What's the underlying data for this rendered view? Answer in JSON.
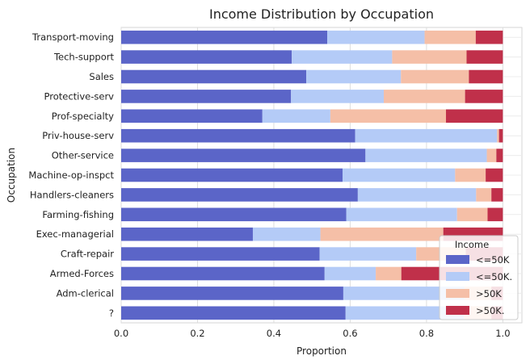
{
  "chart_data": {
    "type": "bar",
    "orientation": "horizontal",
    "stacked": true,
    "title": "Income Distribution by Occupation",
    "xlabel": "Proportion",
    "ylabel": "Occupation",
    "xlim": [
      0,
      1.05
    ],
    "xticks": [
      "0.0",
      "0.2",
      "0.4",
      "0.6",
      "0.8",
      "1.0"
    ],
    "grid": true,
    "categories": [
      "Transport-moving",
      "Tech-support",
      "Sales",
      "Protective-serv",
      "Prof-specialty",
      "Priv-house-serv",
      "Other-service",
      "Machine-op-inspct",
      "Handlers-cleaners",
      "Farming-fishing",
      "Exec-managerial",
      "Craft-repair",
      "Armed-Forces",
      "Adm-clerical",
      "?"
    ],
    "series": [
      {
        "name": "<=50K",
        "color": "#5b65c8",
        "values": [
          0.54,
          0.447,
          0.485,
          0.445,
          0.37,
          0.613,
          0.64,
          0.58,
          0.62,
          0.59,
          0.345,
          0.52,
          0.533,
          0.582,
          0.588
        ]
      },
      {
        "name": "<=50K.",
        "color": "#b4cbf7",
        "values": [
          0.255,
          0.263,
          0.248,
          0.243,
          0.178,
          0.372,
          0.318,
          0.295,
          0.31,
          0.29,
          0.177,
          0.253,
          0.134,
          0.318,
          0.31
        ]
      },
      {
        "name": ">50K",
        "color": "#f5bfa7",
        "values": [
          0.134,
          0.195,
          0.178,
          0.213,
          0.303,
          0.005,
          0.025,
          0.08,
          0.04,
          0.08,
          0.322,
          0.13,
          0.067,
          0.07,
          0.072
        ]
      },
      {
        "name": ">50K.",
        "color": "#c0304a",
        "values": [
          0.071,
          0.095,
          0.089,
          0.099,
          0.149,
          0.01,
          0.017,
          0.045,
          0.03,
          0.04,
          0.156,
          0.097,
          0.266,
          0.03,
          0.03
        ]
      }
    ],
    "legend": {
      "title": "Income",
      "position": "lower-right"
    }
  }
}
